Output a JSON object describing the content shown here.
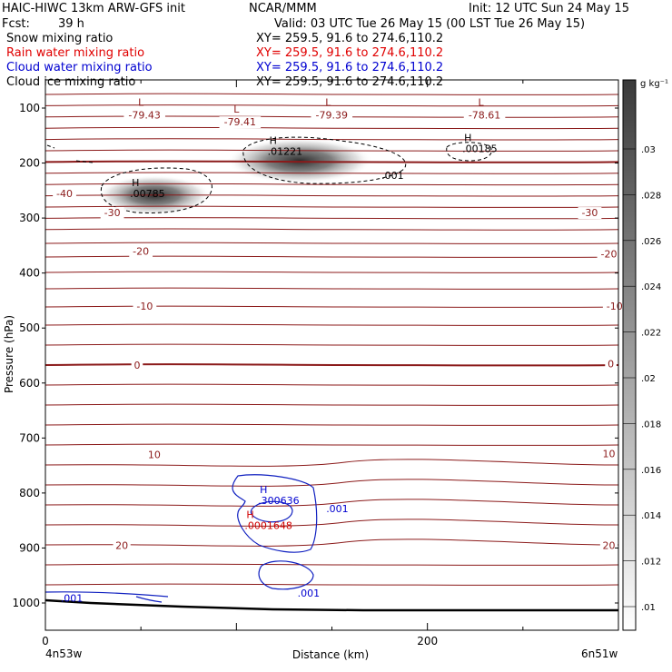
{
  "header": {
    "model": "HAIC-HIWC 13km ARW-GFS init",
    "org": "NCAR/MMM",
    "init": "Init: 12 UTC Sun 24 May 15",
    "fcst_label": "Fcst:",
    "fcst_value": "39 h",
    "valid": "Valid: 03 UTC Tue 26 May 15 (00 LST Tue 26 May 15)",
    "fields": [
      {
        "name": "Snow mixing ratio",
        "xy": "XY= 259.5, 91.6 to 274.6,110.2",
        "color": "#000000"
      },
      {
        "name": "Rain water mixing ratio",
        "xy": "XY= 259.5, 91.6 to 274.6,110.2",
        "color": "#e00000"
      },
      {
        "name": "Cloud water mixing ratio",
        "xy": "XY= 259.5, 91.6 to 274.6,110.2",
        "color": "#0000d0"
      },
      {
        "name": "Cloud ice mixing ratio",
        "xy": "XY= 259.5, 91.6 to 274.6,110.2",
        "color": "#000000"
      }
    ]
  },
  "chart_data": {
    "type": "contour",
    "xlabel": "Distance (km)",
    "ylabel": "Pressure (hPa)",
    "x_ticks": [
      0,
      200
    ],
    "x_endpoints": {
      "left": "4n53w",
      "right": "6n51w"
    },
    "xlim": [
      0,
      300
    ],
    "ylim": [
      1050,
      50
    ],
    "y_ticks": [
      100,
      200,
      300,
      400,
      500,
      600,
      700,
      800,
      900,
      1000
    ],
    "colorbar": {
      "unit": "g kg⁻¹",
      "labels": [
        ".03",
        ".028",
        ".026",
        ".024",
        ".022",
        ".02",
        ".018",
        ".016",
        ".014",
        ".012",
        ".01"
      ]
    },
    "temperature_labels": [
      {
        "x": 10,
        "p": 255,
        "label": "-40"
      },
      {
        "x": 35,
        "p": 290,
        "label": "-30"
      },
      {
        "x": 285,
        "p": 290,
        "label": "-30"
      },
      {
        "x": 50,
        "p": 360,
        "label": "-20"
      },
      {
        "x": 295,
        "p": 365,
        "label": "-20"
      },
      {
        "x": 52,
        "p": 460,
        "label": "-10"
      },
      {
        "x": 298,
        "p": 460,
        "label": "-10"
      },
      {
        "x": 48,
        "p": 567,
        "label": "0"
      },
      {
        "x": 296,
        "p": 565,
        "label": "0"
      },
      {
        "x": 57,
        "p": 730,
        "label": "10"
      },
      {
        "x": 295,
        "p": 728,
        "label": "10"
      },
      {
        "x": 40,
        "p": 895,
        "label": "20"
      },
      {
        "x": 295,
        "p": 895,
        "label": "20"
      }
    ],
    "lows": [
      {
        "x": 50,
        "p": 112,
        "label": "-79.43"
      },
      {
        "x": 100,
        "p": 125,
        "label": "-79.41"
      },
      {
        "x": 148,
        "p": 112,
        "label": "-79.39"
      },
      {
        "x": 228,
        "p": 112,
        "label": "-78.61"
      }
    ],
    "maxima": [
      {
        "x": 50,
        "p": 262,
        "label": ".00785",
        "series": "snow"
      },
      {
        "x": 122,
        "p": 185,
        "label": ".01221",
        "series": "snow"
      },
      {
        "x": 224,
        "p": 180,
        "label": ".00185",
        "series": "ice"
      },
      {
        "x": 117,
        "p": 820,
        "label": ".300636",
        "series": "cloud_water"
      },
      {
        "x": 110,
        "p": 865,
        "label": ".0001648",
        "series": "rain"
      }
    ],
    "contour_labels": [
      {
        "x": 176,
        "p": 222,
        "label": ".001",
        "series": "snow"
      },
      {
        "x": 147,
        "p": 828,
        "label": ".001",
        "series": "cloud_water"
      },
      {
        "x": 132,
        "p": 982,
        "label": ".001",
        "series": "cloud_water"
      },
      {
        "x": 8,
        "p": 991,
        "label": ".001",
        "series": "cloud_water"
      }
    ]
  }
}
